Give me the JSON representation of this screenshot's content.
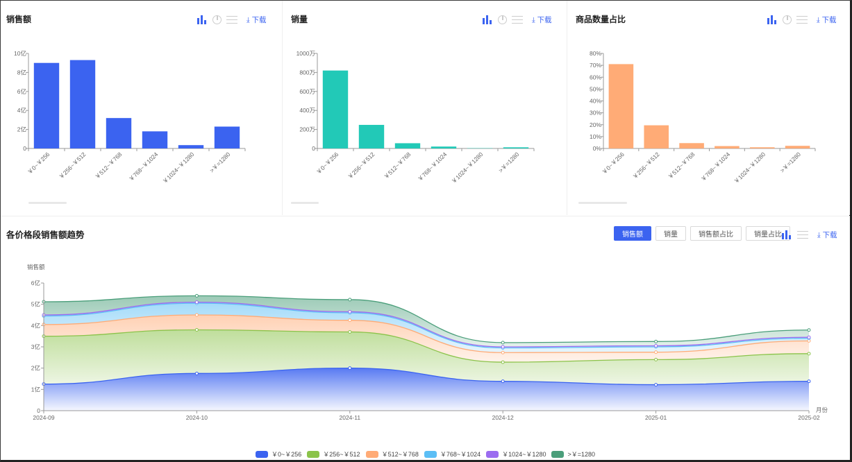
{
  "colors": {
    "accent": "#3b63f0",
    "bar1": "#3b63f0",
    "bar2": "#22c9b7",
    "bar3": "#ffab76",
    "series": [
      "#3b63f0",
      "#8bc34a",
      "#ffab76",
      "#5bbef5",
      "#9b6cf0",
      "#4a9e7a"
    ]
  },
  "icons": {
    "bar": "bar-chart-icon",
    "pie": "pie-chart-icon",
    "list": "list-icon",
    "download": "download-icon"
  },
  "download_label": "下载",
  "trend": {
    "title": "各价格段销售额趋势",
    "buttons": [
      "销售额",
      "销量",
      "销售额占比",
      "销量占比"
    ],
    "active_button": 0
  },
  "chart_data": [
    {
      "type": "bar",
      "title": "销售额",
      "categories": [
        "￥0~￥256",
        "￥256~￥512",
        "￥512~￥768",
        "￥768~￥1024",
        "￥1024~￥1280",
        ">￥=1280"
      ],
      "values": [
        9.0,
        9.3,
        3.2,
        1.8,
        0.35,
        2.3
      ],
      "ylim": [
        0,
        10
      ],
      "yticks": [
        "0",
        "2亿",
        "4亿",
        "6亿",
        "8亿",
        "10亿"
      ]
    },
    {
      "type": "bar",
      "title": "销量",
      "categories": [
        "￥0~￥256",
        "￥256~￥512",
        "￥512~￥768",
        "￥768~￥1024",
        "￥1024~￥1280",
        ">￥=1280"
      ],
      "values": [
        820,
        248,
        55,
        20,
        3,
        12
      ],
      "ylim": [
        0,
        1000
      ],
      "yticks": [
        "0",
        "200万",
        "400万",
        "600万",
        "800万",
        "1000万"
      ]
    },
    {
      "type": "bar",
      "title": "商品数量占比",
      "categories": [
        "￥0~￥256",
        "￥256~￥512",
        "￥512~￥768",
        "￥768~￥1024",
        "￥1024~￥1280",
        ">￥=1280"
      ],
      "values": [
        71,
        19.5,
        4.5,
        2,
        1,
        2.2
      ],
      "ylim": [
        0,
        80
      ],
      "yticks": [
        "0%",
        "10%",
        "20%",
        "30%",
        "40%",
        "50%",
        "60%",
        "70%",
        "80%"
      ]
    },
    {
      "type": "area",
      "stacked": true,
      "ylabel": "销售额",
      "xlabel": "月份",
      "x": [
        "2024-09",
        "2024-10",
        "2024-11",
        "2024-12",
        "2025-01",
        "2025-02"
      ],
      "ylim": [
        0,
        6
      ],
      "yticks": [
        "0",
        "1亿",
        "2亿",
        "3亿",
        "4亿",
        "5亿",
        "6亿"
      ],
      "legend_position": "bottom",
      "series": [
        {
          "name": "￥0~￥256",
          "values": [
            1.25,
            1.75,
            2.0,
            1.38,
            1.22,
            1.38
          ]
        },
        {
          "name": "￥256~￥512",
          "values": [
            2.25,
            2.05,
            1.7,
            0.9,
            1.18,
            1.3
          ]
        },
        {
          "name": "￥512~￥768",
          "values": [
            0.55,
            0.7,
            0.55,
            0.45,
            0.35,
            0.6
          ]
        },
        {
          "name": "￥768~￥1024",
          "values": [
            0.4,
            0.55,
            0.35,
            0.22,
            0.25,
            0.12
          ]
        },
        {
          "name": "￥1024~￥1280",
          "values": [
            0.05,
            0.05,
            0.05,
            0.05,
            0.05,
            0.05
          ]
        },
        {
          "name": ">￥=1280",
          "values": [
            0.62,
            0.3,
            0.57,
            0.2,
            0.2,
            0.34
          ]
        }
      ]
    }
  ]
}
